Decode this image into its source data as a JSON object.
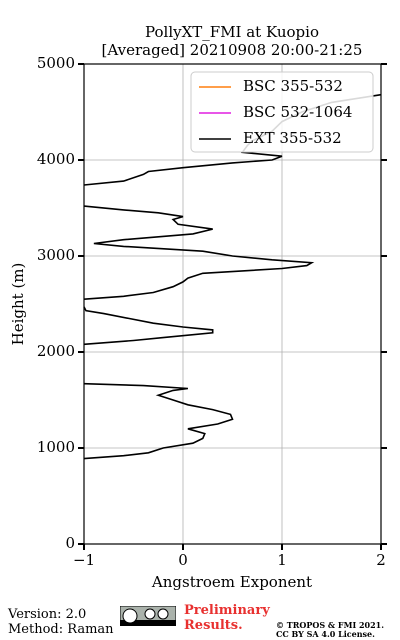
{
  "chart_data": {
    "type": "line",
    "title": "PollyXT_FMI at Kuopio",
    "subtitle": "[Averaged] 20210908 20:00-21:25",
    "x_label": "Angstroem Exponent",
    "y_label": "Height (m)",
    "xlim": [
      -1,
      2
    ],
    "xticks": [
      {
        "value": -1,
        "label": "−1"
      },
      0,
      1,
      2
    ],
    "ylim": [
      0,
      5000
    ],
    "yticks": [
      0,
      1000,
      2000,
      3000,
      4000,
      5000
    ],
    "grid": true,
    "legend": "upper right",
    "y": [
      890,
      920,
      950,
      1000,
      1050,
      1100,
      1150,
      1200,
      1250,
      1300,
      1350,
      1400,
      1450,
      1500,
      1550,
      1600,
      1620,
      1650,
      1670,
      1800,
      2080,
      2120,
      2150,
      2200,
      2230,
      2260,
      2300,
      2350,
      2400,
      2430,
      2470,
      2500,
      2550,
      2580,
      2620,
      2680,
      2730,
      2770,
      2820,
      2870,
      2900,
      2930,
      2960,
      3000,
      3050,
      3100,
      3130,
      3170,
      3230,
      3280,
      3330,
      3380,
      3410,
      3450,
      3480,
      3520,
      3600,
      3740,
      3780,
      3850,
      3880,
      3920,
      3970,
      4000,
      4040,
      4080,
      4150,
      4200,
      4300,
      4400,
      4500,
      4600,
      4680
    ],
    "series": [
      {
        "name": "BSC 355-532",
        "color": "#ff7f0e",
        "values": [
          null,
          null,
          null,
          null,
          null,
          null,
          null,
          null,
          null,
          null,
          null,
          null,
          null,
          null,
          null,
          null,
          null,
          null,
          null,
          null,
          null,
          null,
          null,
          null,
          null,
          null,
          null,
          null,
          null,
          null,
          null,
          null,
          null,
          null,
          null,
          null,
          null,
          null,
          null,
          null,
          null,
          null,
          null,
          null,
          null,
          null,
          null,
          null,
          null,
          null,
          null,
          null,
          null,
          null,
          null,
          null,
          null,
          null,
          null,
          null,
          null,
          null,
          null,
          null,
          null,
          null,
          null,
          null,
          null,
          null,
          null,
          null,
          null
        ]
      },
      {
        "name": "BSC 532-1064",
        "color": "#e11ee1",
        "values": [
          null,
          null,
          null,
          null,
          null,
          null,
          null,
          null,
          null,
          null,
          null,
          null,
          null,
          null,
          null,
          null,
          null,
          null,
          null,
          null,
          null,
          null,
          null,
          null,
          null,
          null,
          null,
          null,
          null,
          null,
          null,
          null,
          null,
          null,
          null,
          null,
          null,
          null,
          null,
          null,
          null,
          null,
          null,
          null,
          null,
          null,
          null,
          null,
          null,
          null,
          null,
          null,
          null,
          null,
          null,
          null,
          null,
          null,
          null,
          null,
          null,
          null,
          null,
          null,
          null,
          null,
          null,
          null,
          null,
          null,
          null,
          null,
          null
        ]
      },
      {
        "name": "EXT 355-532",
        "color": "#000000",
        "values": [
          -1.0,
          -0.6,
          -0.35,
          -0.2,
          0.1,
          0.2,
          0.22,
          0.05,
          0.35,
          0.5,
          0.48,
          0.3,
          0.05,
          -0.1,
          -0.25,
          -0.1,
          0.05,
          -0.4,
          -1.0,
          null,
          -1.0,
          -0.5,
          -0.2,
          0.3,
          0.3,
          0.0,
          -0.3,
          -0.55,
          -0.8,
          -0.98,
          -1.0,
          null,
          -1.0,
          -0.6,
          -0.3,
          -0.1,
          0.0,
          0.05,
          0.2,
          1.0,
          1.25,
          1.3,
          0.9,
          0.5,
          0.2,
          -0.6,
          -0.9,
          -0.6,
          0.1,
          0.3,
          -0.05,
          -0.1,
          0.0,
          -0.25,
          -0.6,
          -1.0,
          null,
          -1.0,
          -0.6,
          -0.4,
          -0.35,
          0.0,
          0.5,
          0.9,
          1.0,
          0.6,
          0.65,
          0.7,
          0.9,
          1.0,
          1.2,
          1.5,
          2.0
        ]
      }
    ]
  },
  "footer": {
    "version": "Version: 2.0",
    "method": "Method: Raman",
    "status": "Preliminary Results.",
    "copyright": "© TROPOS & FMI 2021.",
    "license": "CC BY SA 4.0 License."
  }
}
